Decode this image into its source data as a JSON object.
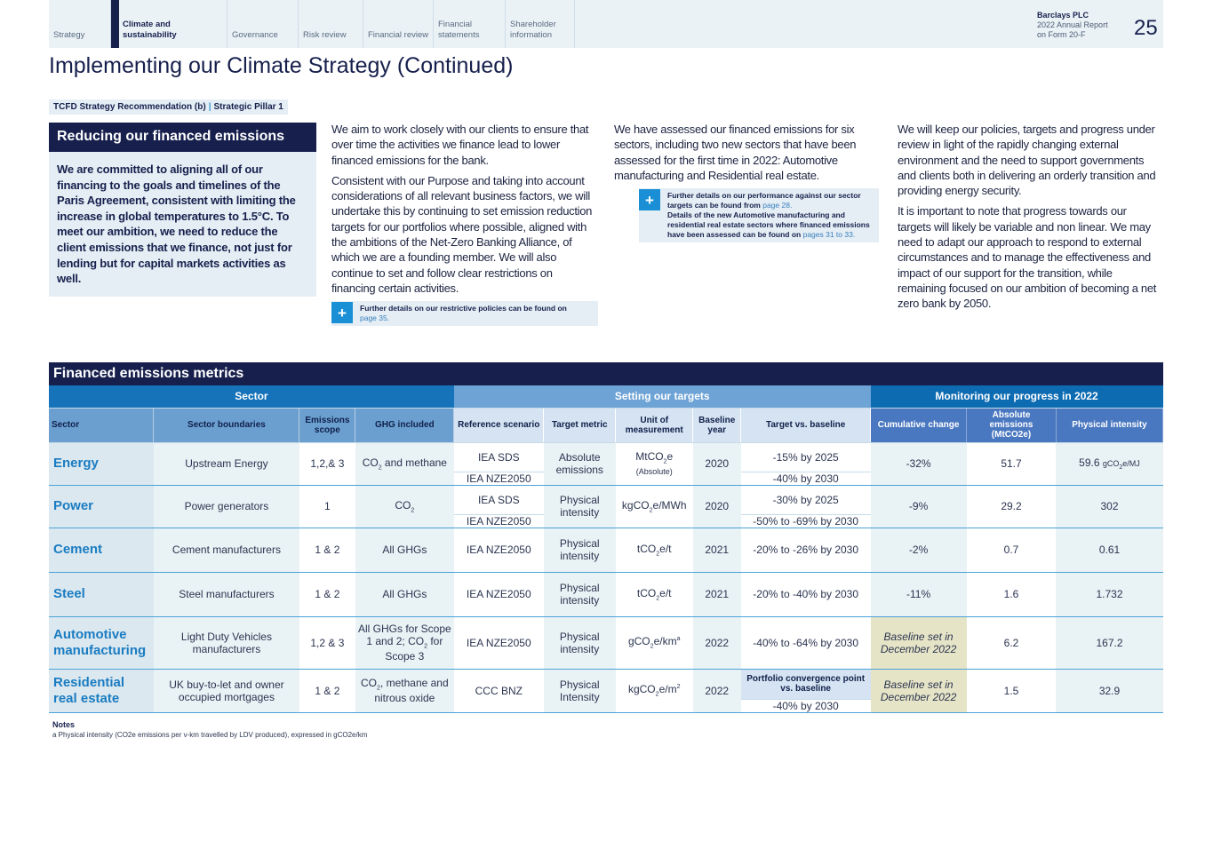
{
  "nav": [
    "Strategy",
    "Climate and sustainability",
    "Governance",
    "Risk review",
    "Financial review",
    "Financial statements",
    "Shareholder information"
  ],
  "nav_active": 1,
  "brand": {
    "name": "Barclays PLC",
    "sub1": "2022 Annual Report",
    "sub2": "on Form 20-F",
    "page": "25"
  },
  "title": "Implementing our Climate Strategy (Continued)",
  "tag": {
    "a": "TCFD Strategy Recommendation (b)",
    "sep": "|",
    "b": "Strategic Pillar 1"
  },
  "box": {
    "heading": "Reducing our financed emissions",
    "body": "We are committed to aligning all of our financing to the goals and timelines of the Paris Agreement, consistent with limiting the increase in global temperatures to 1.5°C. To meet our ambition, we need to reduce the client emissions that we finance, not just for lending but for capital markets activities as well."
  },
  "col1": {
    "p1": "We aim to work closely with our clients to ensure that over time the activities we finance lead to lower financed emissions for the bank.",
    "p2": "Consistent with our Purpose and taking into account considerations of all relevant business factors, we will undertake this by continuing to set emission reduction  targets for our portfolios where possible, aligned with the ambitions of the Net-Zero Banking Alliance, of which we are a founding member. We will also continue to set and follow clear restrictions on financing certain activities.",
    "note": "Further details on our restrictive policies can be found on",
    "link": "page 35."
  },
  "col2": {
    "p1": "We have assessed our financed emissions for six sectors, including two new sectors that have been assessed for the first time in 2022: Automotive manufacturing and Residential real estate.",
    "note1": "Further details on our performance against our sector targets can be found from",
    "link1": "page 28.",
    "note2": "Details of the new Automotive manufacturing and residential real estate sectors where financed emissions have been assessed can be found on",
    "link2": "pages 31 to 33."
  },
  "col3": {
    "p1": "We will keep our policies, targets and progress under review in light of the rapidly changing external environment and the need to support governments and clients both in delivering an orderly  transition and providing energy security.",
    "p2": "It is important to note that progress towards our targets will likely be variable and non linear. We may need to adapt our approach to respond to external circumstances and to manage the effectiveness and impact of our support for the transition, while remaining focused on our ambition of becoming a net zero bank by 2050."
  },
  "table": {
    "title": "Financed emissions metrics",
    "groups": [
      "Sector",
      "Setting our targets",
      "Monitoring our progress in 2022"
    ],
    "headers": [
      "Sector",
      "Sector boundaries",
      "Emissions scope",
      "GHG included",
      "Reference scenario",
      "Target metric",
      "Unit of measurement",
      "Baseline year",
      "Target vs. baseline",
      "Cumulative change",
      "Absolute emissions (MtCO2e)",
      "Physical intensity"
    ],
    "rows": [
      {
        "sector": "Energy",
        "boundaries": "Upstream Energy",
        "scope": "1,2,& 3",
        "ghg": "CO2 and methane",
        "scenarios": [
          "IEA SDS",
          "IEA NZE2050"
        ],
        "metric": "Absolute emissions",
        "unit": "MtCO2e",
        "unit_note": "(Absolute)",
        "baseline": "2020",
        "targets": [
          "-15% by 2025",
          "-40% by 2030"
        ],
        "cumulative": "-32%",
        "absolute": "51.7",
        "intensity": "59.6",
        "intensity_unit": "gCO2e/MJ"
      },
      {
        "sector": "Power",
        "boundaries": "Power generators",
        "scope": "1",
        "ghg": "CO2",
        "scenarios": [
          "IEA SDS",
          "IEA NZE2050"
        ],
        "metric": "Physical intensity",
        "unit": "kgCO2e/MWh",
        "baseline": "2020",
        "targets": [
          "-30% by 2025",
          "-50% to -69% by 2030"
        ],
        "cumulative": "-9%",
        "absolute": "29.2",
        "intensity": "302"
      },
      {
        "sector": "Cement",
        "boundaries": "Cement manufacturers",
        "scope": "1 & 2",
        "ghg": "All GHGs",
        "scenarios": [
          "IEA NZE2050"
        ],
        "metric": "Physical intensity",
        "unit": "tCO2e/t",
        "baseline": "2021",
        "targets": [
          "-20% to -26% by 2030"
        ],
        "cumulative": "-2%",
        "absolute": "0.7",
        "intensity": "0.61"
      },
      {
        "sector": "Steel",
        "boundaries": "Steel manufacturers",
        "scope": "1 & 2",
        "ghg": "All GHGs",
        "scenarios": [
          "IEA NZE2050"
        ],
        "metric": "Physical intensity",
        "unit": "tCO2e/t",
        "baseline": "2021",
        "targets": [
          "-20% to -40% by 2030"
        ],
        "cumulative": "-11%",
        "absolute": "1.6",
        "intensity": "1.732"
      },
      {
        "sector": "Automotive manufacturing",
        "boundaries": "Light Duty Vehicles manufacturers",
        "scope": "1,2 & 3",
        "ghg": "All GHGs for Scope 1 and 2; CO2 for Scope 3",
        "scenarios": [
          "IEA NZE2050"
        ],
        "metric": "Physical intensity",
        "unit": "gCO2e/km",
        "unit_sup": "a",
        "baseline": "2022",
        "targets": [
          "-40% to -64% by 2030"
        ],
        "cumulative": "Baseline set in December 2022",
        "absolute": "6.2",
        "intensity": "167.2"
      },
      {
        "sector": "Residential real estate",
        "boundaries": "UK buy-to-let and owner occupied mortgages",
        "scope": "1 & 2",
        "ghg": "CO2, methane and nitrous oxide",
        "scenarios": [
          "CCC BNZ"
        ],
        "metric": "Physical Intensity",
        "unit": "kgCO2e/m",
        "unit_sup": "2",
        "baseline": "2022",
        "target_header": "Portfolio convergence point vs. baseline",
        "targets": [
          "-40% by 2030"
        ],
        "cumulative": "Baseline set in December 2022",
        "absolute": "1.5",
        "intensity": "32.9"
      }
    ]
  },
  "notes": {
    "label": "Notes",
    "a": "a    Physical intensity (CO2e emissions per v-km travelled by LDV produced), expressed in gCO2e/km"
  },
  "colors": {
    "navy": "#17204d",
    "accent": "#1a7cc2",
    "khaki": "#e6e4c6"
  }
}
